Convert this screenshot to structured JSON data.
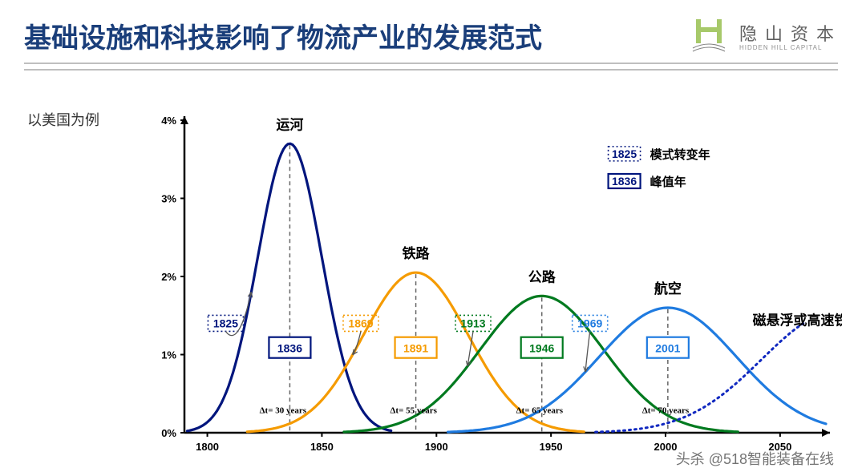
{
  "header": {
    "title": "基础设施和科技影响了物流产业的发展范式",
    "logo_name": "隐山资本",
    "logo_sub": "HIDDEN HILL CAPITAL"
  },
  "subtitle": "以美国为例",
  "watermark": "头杀 @518智能装备在线",
  "chart": {
    "type": "line-gaussian",
    "xlim": [
      1790,
      2070
    ],
    "ylim": [
      0,
      4
    ],
    "xticks": [
      1800,
      1850,
      1900,
      1950,
      2000,
      2050
    ],
    "yticks": [
      0,
      1,
      2,
      3,
      4
    ],
    "ytick_suffix": "%",
    "axis_color": "#000000",
    "curves": [
      {
        "name": "运河",
        "color": "#00157d",
        "peak_year": 1836,
        "peak_value": 3.7,
        "sigma": 14,
        "label_dy": -18
      },
      {
        "name": "铁路",
        "color": "#f59b00",
        "peak_year": 1891,
        "peak_value": 2.05,
        "sigma": 23,
        "label_dy": -18
      },
      {
        "name": "公路",
        "color": "#007a1f",
        "peak_year": 1946,
        "peak_value": 1.75,
        "sigma": 27,
        "label_dy": -18
      },
      {
        "name": "航空",
        "color": "#1f7be0",
        "peak_year": 2001,
        "peak_value": 1.6,
        "sigma": 30,
        "label_dy": -18
      }
    ],
    "future_curve": {
      "label": "磁悬浮或高速铁路",
      "color": "#1028c0",
      "peak_year": 2075,
      "peak_value": 1.55,
      "sigma": 33
    },
    "shift_years": [
      {
        "year": 1825,
        "x": 1808,
        "color": "#00157d"
      },
      {
        "year": 1869,
        "x": 1867,
        "color": "#f59b00"
      },
      {
        "year": 1913,
        "x": 1916,
        "color": "#007a1f"
      },
      {
        "year": 1969,
        "x": 1967,
        "color": "#1f7be0"
      }
    ],
    "peak_year_boxes": [
      {
        "year": 1836,
        "color": "#00157d"
      },
      {
        "year": 1891,
        "color": "#f59b00"
      },
      {
        "year": 1946,
        "color": "#007a1f"
      },
      {
        "year": 2001,
        "color": "#1f7be0"
      }
    ],
    "dt_labels": [
      {
        "text": "Δt= 30 years",
        "x": 1833
      },
      {
        "text": "Δt= 55 years",
        "x": 1890
      },
      {
        "text": "Δt= 65 years",
        "x": 1945
      },
      {
        "text": "Δt= 70 years",
        "x": 2000
      }
    ],
    "legend": {
      "shift_sample": "1825",
      "shift_label": "模式转变年",
      "peak_sample": "1836",
      "peak_label": "峰值年",
      "shift_color": "#00157d",
      "peak_color": "#00157d"
    }
  }
}
